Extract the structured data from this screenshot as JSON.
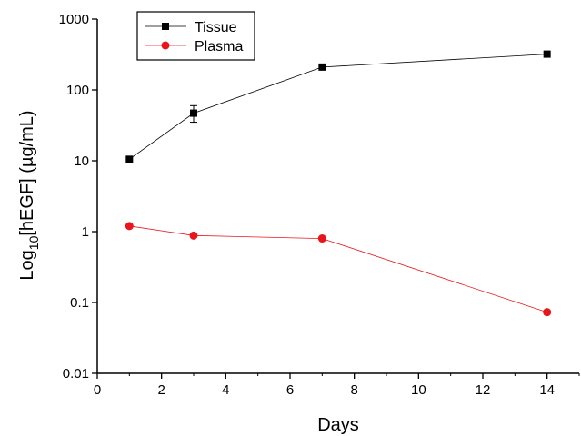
{
  "chart_data": {
    "type": "line",
    "title": "",
    "xlabel": "Days",
    "ylabel_main": "Log",
    "ylabel_sub": "10",
    "ylabel_rest": "[hEGF] (µg/mL)",
    "xlim": [
      0,
      15
    ],
    "ylim": [
      0.01,
      1000
    ],
    "yscale": "log",
    "grid": false,
    "legend_position": "top-left",
    "x_ticks": [
      0,
      2,
      4,
      6,
      8,
      10,
      12,
      14
    ],
    "x_tick_labels": [
      "0",
      "2",
      "4",
      "6",
      "8",
      "10",
      "12",
      "14"
    ],
    "y_ticks": [
      0.01,
      0.1,
      1,
      10,
      100,
      1000
    ],
    "y_tick_labels": [
      "0.01",
      "0.1",
      "1",
      "10",
      "100",
      "1000"
    ],
    "series": [
      {
        "name": "Tissue",
        "color": "#000000",
        "marker": "square",
        "x": [
          1,
          3,
          7,
          14
        ],
        "y": [
          10.5,
          47,
          210,
          320
        ],
        "err_low": [
          10.5,
          35,
          210,
          320
        ],
        "err_high": [
          10.5,
          60,
          210,
          320
        ]
      },
      {
        "name": "Plasma",
        "color": "#e8161b",
        "marker": "circle",
        "x": [
          1,
          3,
          7,
          14
        ],
        "y": [
          1.2,
          0.88,
          0.8,
          0.073
        ]
      }
    ]
  }
}
